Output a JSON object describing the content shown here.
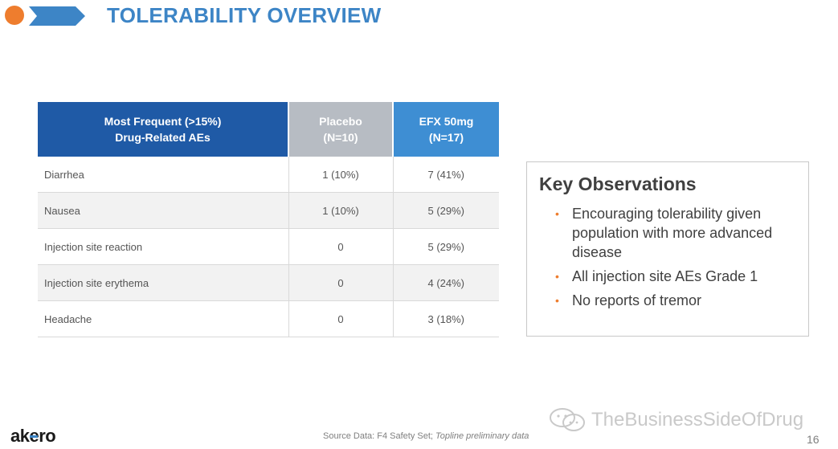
{
  "header": {
    "title": "TOLERABILITY OVERVIEW",
    "accent_color": "#EE7D2E",
    "brand_color": "#3D85C6"
  },
  "table": {
    "headers": [
      {
        "line1": "Most Frequent (>15%)",
        "line2": "Drug-Related AEs"
      },
      {
        "line1": "Placebo",
        "line2": "(N=10)"
      },
      {
        "line1": "EFX 50mg",
        "line2": "(N=17)"
      }
    ],
    "rows": [
      {
        "ae": "Diarrhea",
        "placebo": "1 (10%)",
        "efx": "7 (41%)"
      },
      {
        "ae": "Nausea",
        "placebo": "1 (10%)",
        "efx": "5 (29%)"
      },
      {
        "ae": "Injection site reaction",
        "placebo": "0",
        "efx": "5 (29%)"
      },
      {
        "ae": "Injection site erythema",
        "placebo": "0",
        "efx": "4 (24%)"
      },
      {
        "ae": "Headache",
        "placebo": "0",
        "efx": "3 (18%)"
      }
    ]
  },
  "observations": {
    "title": "Key Observations",
    "bullet_icon": "bullet-dot-icon",
    "items": [
      "Encouraging tolerability given population with more advanced disease",
      "All injection site AEs Grade 1",
      "No reports of tremor"
    ]
  },
  "footer": {
    "logo_prefix": "ak",
    "logo_mark": "e",
    "logo_suffix": "ro",
    "source_text": "Source Data: F4 Safety Set; ",
    "source_italic": "Topline preliminary data",
    "watermark": "TheBusinessSideOfDrug",
    "page_number": "16"
  }
}
